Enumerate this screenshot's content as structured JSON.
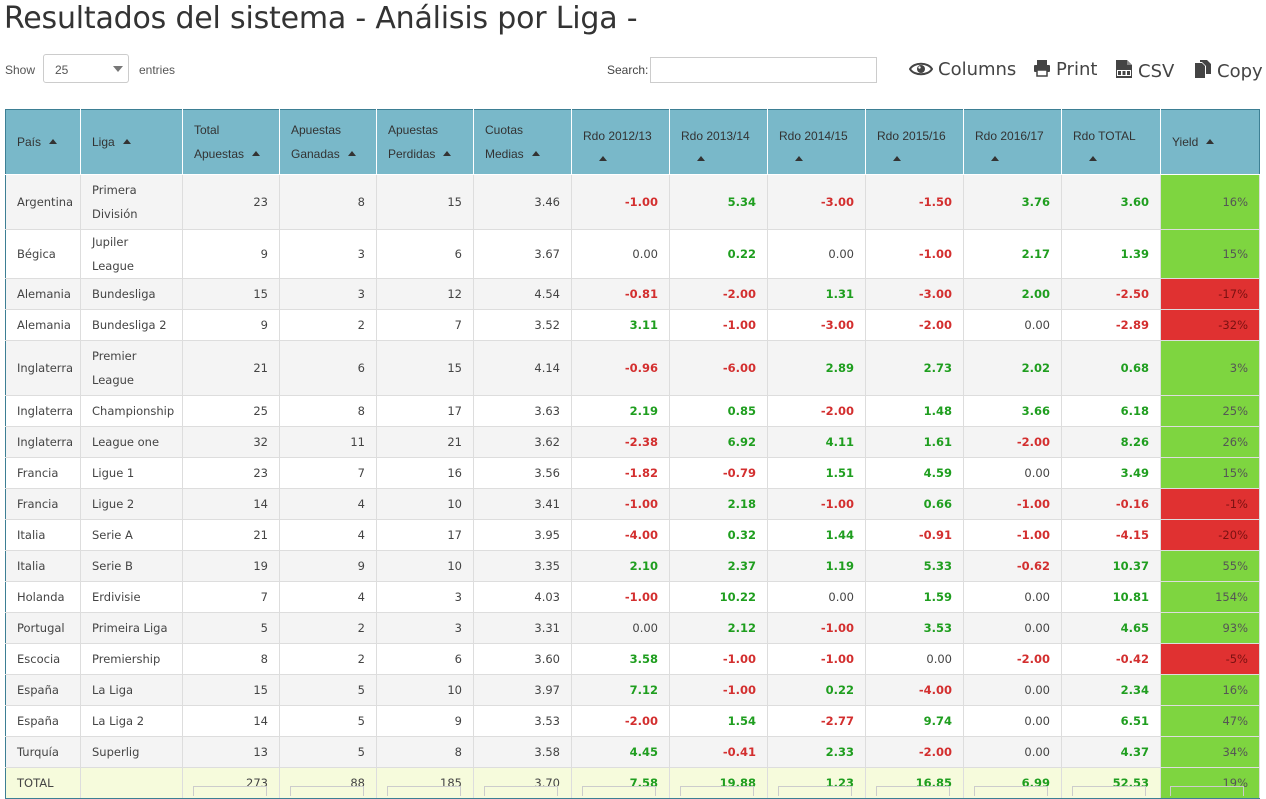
{
  "title": "Resultados del sistema - Análisis por Liga -",
  "controls": {
    "show_label": "Show",
    "entries_value": "25",
    "entries_label": "entries",
    "search_label": "Search:",
    "search_value": "",
    "buttons": {
      "columns": "Columns",
      "print": "Print",
      "csv": "CSV",
      "copy": "Copy"
    }
  },
  "table": {
    "headers": {
      "pais": "País",
      "liga": "Liga",
      "total_apuestas": [
        "Total",
        "Apuestas"
      ],
      "ganadas": [
        "Apuestas",
        "Ganadas"
      ],
      "perdidas": [
        "Apuestas",
        "Perdidas"
      ],
      "cuotas": [
        "Cuotas",
        "Medias"
      ],
      "rdo_1213": "Rdo 2012/13",
      "rdo_1314": "Rdo 2013/14",
      "rdo_1415": "Rdo 2014/15",
      "rdo_1516": "Rdo 2015/16",
      "rdo_1617": "Rdo 2016/17",
      "rdo_total": "Rdo TOTAL",
      "yield": "Yield"
    },
    "rows": [
      {
        "pais": "Argentina",
        "liga": [
          "Primera",
          "División"
        ],
        "total": "23",
        "ganadas": "8",
        "perdidas": "15",
        "cuotas": "3.46",
        "r1213": "-1.00",
        "r1314": "5.34",
        "r1415": "-3.00",
        "r1516": "-1.50",
        "r1617": "3.76",
        "rtotal": "3.60",
        "yield": "16%"
      },
      {
        "pais": "Bégica",
        "liga": [
          "Jupiler League"
        ],
        "total": "9",
        "ganadas": "3",
        "perdidas": "6",
        "cuotas": "3.67",
        "r1213": "0.00",
        "r1314": "0.22",
        "r1415": "0.00",
        "r1516": "-1.00",
        "r1617": "2.17",
        "rtotal": "1.39",
        "yield": "15%"
      },
      {
        "pais": "Alemania",
        "liga": [
          "Bundesliga"
        ],
        "total": "15",
        "ganadas": "3",
        "perdidas": "12",
        "cuotas": "4.54",
        "r1213": "-0.81",
        "r1314": "-2.00",
        "r1415": "1.31",
        "r1516": "-3.00",
        "r1617": "2.00",
        "rtotal": "-2.50",
        "yield": "-17%"
      },
      {
        "pais": "Alemania",
        "liga": [
          "Bundesliga 2"
        ],
        "total": "9",
        "ganadas": "2",
        "perdidas": "7",
        "cuotas": "3.52",
        "r1213": "3.11",
        "r1314": "-1.00",
        "r1415": "-3.00",
        "r1516": "-2.00",
        "r1617": "0.00",
        "rtotal": "-2.89",
        "yield": "-32%"
      },
      {
        "pais": "Inglaterra",
        "liga": [
          "Premier",
          "League"
        ],
        "total": "21",
        "ganadas": "6",
        "perdidas": "15",
        "cuotas": "4.14",
        "r1213": "-0.96",
        "r1314": "-6.00",
        "r1415": "2.89",
        "r1516": "2.73",
        "r1617": "2.02",
        "rtotal": "0.68",
        "yield": "3%"
      },
      {
        "pais": "Inglaterra",
        "liga": [
          "Championship"
        ],
        "total": "25",
        "ganadas": "8",
        "perdidas": "17",
        "cuotas": "3.63",
        "r1213": "2.19",
        "r1314": "0.85",
        "r1415": "-2.00",
        "r1516": "1.48",
        "r1617": "3.66",
        "rtotal": "6.18",
        "yield": "25%"
      },
      {
        "pais": "Inglaterra",
        "liga": [
          "League one"
        ],
        "total": "32",
        "ganadas": "11",
        "perdidas": "21",
        "cuotas": "3.62",
        "r1213": "-2.38",
        "r1314": "6.92",
        "r1415": "4.11",
        "r1516": "1.61",
        "r1617": "-2.00",
        "rtotal": "8.26",
        "yield": "26%"
      },
      {
        "pais": "Francia",
        "liga": [
          "Ligue 1"
        ],
        "total": "23",
        "ganadas": "7",
        "perdidas": "16",
        "cuotas": "3.56",
        "r1213": "-1.82",
        "r1314": "-0.79",
        "r1415": "1.51",
        "r1516": "4.59",
        "r1617": "0.00",
        "rtotal": "3.49",
        "yield": "15%"
      },
      {
        "pais": "Francia",
        "liga": [
          "Ligue 2"
        ],
        "total": "14",
        "ganadas": "4",
        "perdidas": "10",
        "cuotas": "3.41",
        "r1213": "-1.00",
        "r1314": "2.18",
        "r1415": "-1.00",
        "r1516": "0.66",
        "r1617": "-1.00",
        "rtotal": "-0.16",
        "yield": "-1%"
      },
      {
        "pais": "Italia",
        "liga": [
          "Serie A"
        ],
        "total": "21",
        "ganadas": "4",
        "perdidas": "17",
        "cuotas": "3.95",
        "r1213": "-4.00",
        "r1314": "0.32",
        "r1415": "1.44",
        "r1516": "-0.91",
        "r1617": "-1.00",
        "rtotal": "-4.15",
        "yield": "-20%"
      },
      {
        "pais": "Italia",
        "liga": [
          "Serie B"
        ],
        "total": "19",
        "ganadas": "9",
        "perdidas": "10",
        "cuotas": "3.35",
        "r1213": "2.10",
        "r1314": "2.37",
        "r1415": "1.19",
        "r1516": "5.33",
        "r1617": "-0.62",
        "rtotal": "10.37",
        "yield": "55%"
      },
      {
        "pais": "Holanda",
        "liga": [
          "Erdivisie"
        ],
        "total": "7",
        "ganadas": "4",
        "perdidas": "3",
        "cuotas": "4.03",
        "r1213": "-1.00",
        "r1314": "10.22",
        "r1415": "0.00",
        "r1516": "1.59",
        "r1617": "0.00",
        "rtotal": "10.81",
        "yield": "154%"
      },
      {
        "pais": "Portugal",
        "liga": [
          "Primeira Liga"
        ],
        "total": "5",
        "ganadas": "2",
        "perdidas": "3",
        "cuotas": "3.31",
        "r1213": "0.00",
        "r1314": "2.12",
        "r1415": "-1.00",
        "r1516": "3.53",
        "r1617": "0.00",
        "rtotal": "4.65",
        "yield": "93%"
      },
      {
        "pais": "Escocia",
        "liga": [
          "Premiership"
        ],
        "total": "8",
        "ganadas": "2",
        "perdidas": "6",
        "cuotas": "3.60",
        "r1213": "3.58",
        "r1314": "-1.00",
        "r1415": "-1.00",
        "r1516": "0.00",
        "r1617": "-2.00",
        "rtotal": "-0.42",
        "yield": "-5%"
      },
      {
        "pais": "España",
        "liga": [
          "La Liga"
        ],
        "total": "15",
        "ganadas": "5",
        "perdidas": "10",
        "cuotas": "3.97",
        "r1213": "7.12",
        "r1314": "-1.00",
        "r1415": "0.22",
        "r1516": "-4.00",
        "r1617": "0.00",
        "rtotal": "2.34",
        "yield": "16%"
      },
      {
        "pais": "España",
        "liga": [
          "La Liga 2"
        ],
        "total": "14",
        "ganadas": "5",
        "perdidas": "9",
        "cuotas": "3.53",
        "r1213": "-2.00",
        "r1314": "1.54",
        "r1415": "-2.77",
        "r1516": "9.74",
        "r1617": "0.00",
        "rtotal": "6.51",
        "yield": "47%"
      },
      {
        "pais": "Turquía",
        "liga": [
          "Superlig"
        ],
        "total": "13",
        "ganadas": "5",
        "perdidas": "8",
        "cuotas": "3.58",
        "r1213": "4.45",
        "r1314": "-0.41",
        "r1415": "2.33",
        "r1516": "-2.00",
        "r1617": "0.00",
        "rtotal": "4.37",
        "yield": "34%"
      }
    ],
    "total_row": {
      "pais": "TOTAL",
      "liga": [],
      "total": "273",
      "ganadas": "88",
      "perdidas": "185",
      "cuotas": "3.70",
      "r1213": "7.58",
      "r1314": "19.88",
      "r1415": "1.23",
      "r1516": "16.85",
      "r1617": "6.99",
      "rtotal": "52.53",
      "yield": "19%"
    }
  },
  "colors": {
    "header_bg": "#79b8c9",
    "positive_text": "#1f9e1f",
    "negative_text": "#d32f2f",
    "yield_positive_bg": "#7ed540",
    "yield_negative_bg": "#e03131",
    "total_row_bg": "#f6fbdc"
  }
}
